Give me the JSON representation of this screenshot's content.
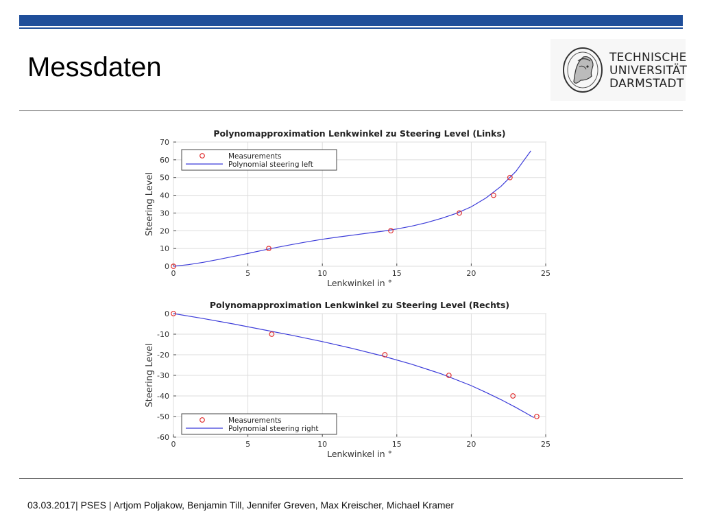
{
  "slide": {
    "title": "Messdaten",
    "accent_color": "#1f4e9a",
    "logo": {
      "icon": "athena-seal-icon",
      "lines": [
        "TECHNISCHE",
        "UNIVERSITÄT",
        "DARMSTADT"
      ]
    },
    "footer": "03.03.2017| PSES | Artjom Poljakow, Benjamin Till, Jennifer Greven, Max Kreischer, Michael Kramer"
  },
  "chart_data": [
    {
      "type": "line",
      "title": "Polynomapproximation Lenkwinkel zu Steering Level (Links)",
      "xlabel": "Lenkwinkel in °",
      "ylabel": "Steering Level",
      "xlim": [
        0,
        25
      ],
      "ylim": [
        0,
        70
      ],
      "xticks": [
        "0",
        "5",
        "10",
        "15",
        "20",
        "25"
      ],
      "yticks": [
        "0",
        "10",
        "20",
        "30",
        "40",
        "50",
        "60",
        "70"
      ],
      "grid": true,
      "legend_position": "top-left",
      "series": [
        {
          "name": "Measurements",
          "kind": "scatter",
          "color": "#e03030",
          "x": [
            0,
            6.4,
            14.6,
            19.2,
            21.5,
            22.6
          ],
          "y": [
            0,
            10,
            20,
            30,
            40,
            50
          ]
        },
        {
          "name": "Polynomial steering left",
          "kind": "line",
          "color": "#3b3bd9",
          "x": [
            0,
            1,
            2,
            3,
            4,
            5,
            6,
            7,
            8,
            9,
            10,
            11,
            12,
            13,
            14,
            15,
            16,
            17,
            18,
            19,
            20,
            21,
            22,
            23,
            24
          ],
          "y": [
            0,
            0.9,
            2.2,
            3.8,
            5.5,
            7.2,
            9.0,
            10.7,
            12.3,
            13.8,
            15.2,
            16.4,
            17.5,
            18.6,
            19.7,
            21.0,
            22.6,
            24.6,
            27.0,
            29.8,
            33.5,
            38.5,
            45.0,
            53.5,
            65.0
          ]
        }
      ]
    },
    {
      "type": "line",
      "title": "Polynomapproximation Lenkwinkel zu Steering Level (Rechts)",
      "xlabel": "Lenkwinkel in °",
      "ylabel": "Steering Level",
      "xlim": [
        0,
        25
      ],
      "ylim": [
        -60,
        0
      ],
      "xticks": [
        "0",
        "5",
        "10",
        "15",
        "20",
        "25"
      ],
      "yticks": [
        "0",
        "-10",
        "-20",
        "-30",
        "-40",
        "-50",
        "-60"
      ],
      "grid": true,
      "legend_position": "bottom-left",
      "series": [
        {
          "name": "Measurements",
          "kind": "scatter",
          "color": "#e03030",
          "x": [
            0,
            6.6,
            14.2,
            18.5,
            22.8,
            24.4
          ],
          "y": [
            0,
            -10,
            -20,
            -30,
            -40,
            -50
          ]
        },
        {
          "name": "Polynomial steering right",
          "kind": "line",
          "color": "#3b3bd9",
          "x": [
            0,
            2,
            4,
            6,
            8,
            10,
            12,
            14,
            16,
            18,
            20,
            21,
            22,
            23,
            24.2
          ],
          "y": [
            0,
            -2.4,
            -5.0,
            -7.8,
            -10.6,
            -13.6,
            -16.9,
            -20.5,
            -24.6,
            -29.3,
            -35.0,
            -38.3,
            -41.8,
            -45.6,
            -50.5
          ]
        }
      ]
    }
  ]
}
